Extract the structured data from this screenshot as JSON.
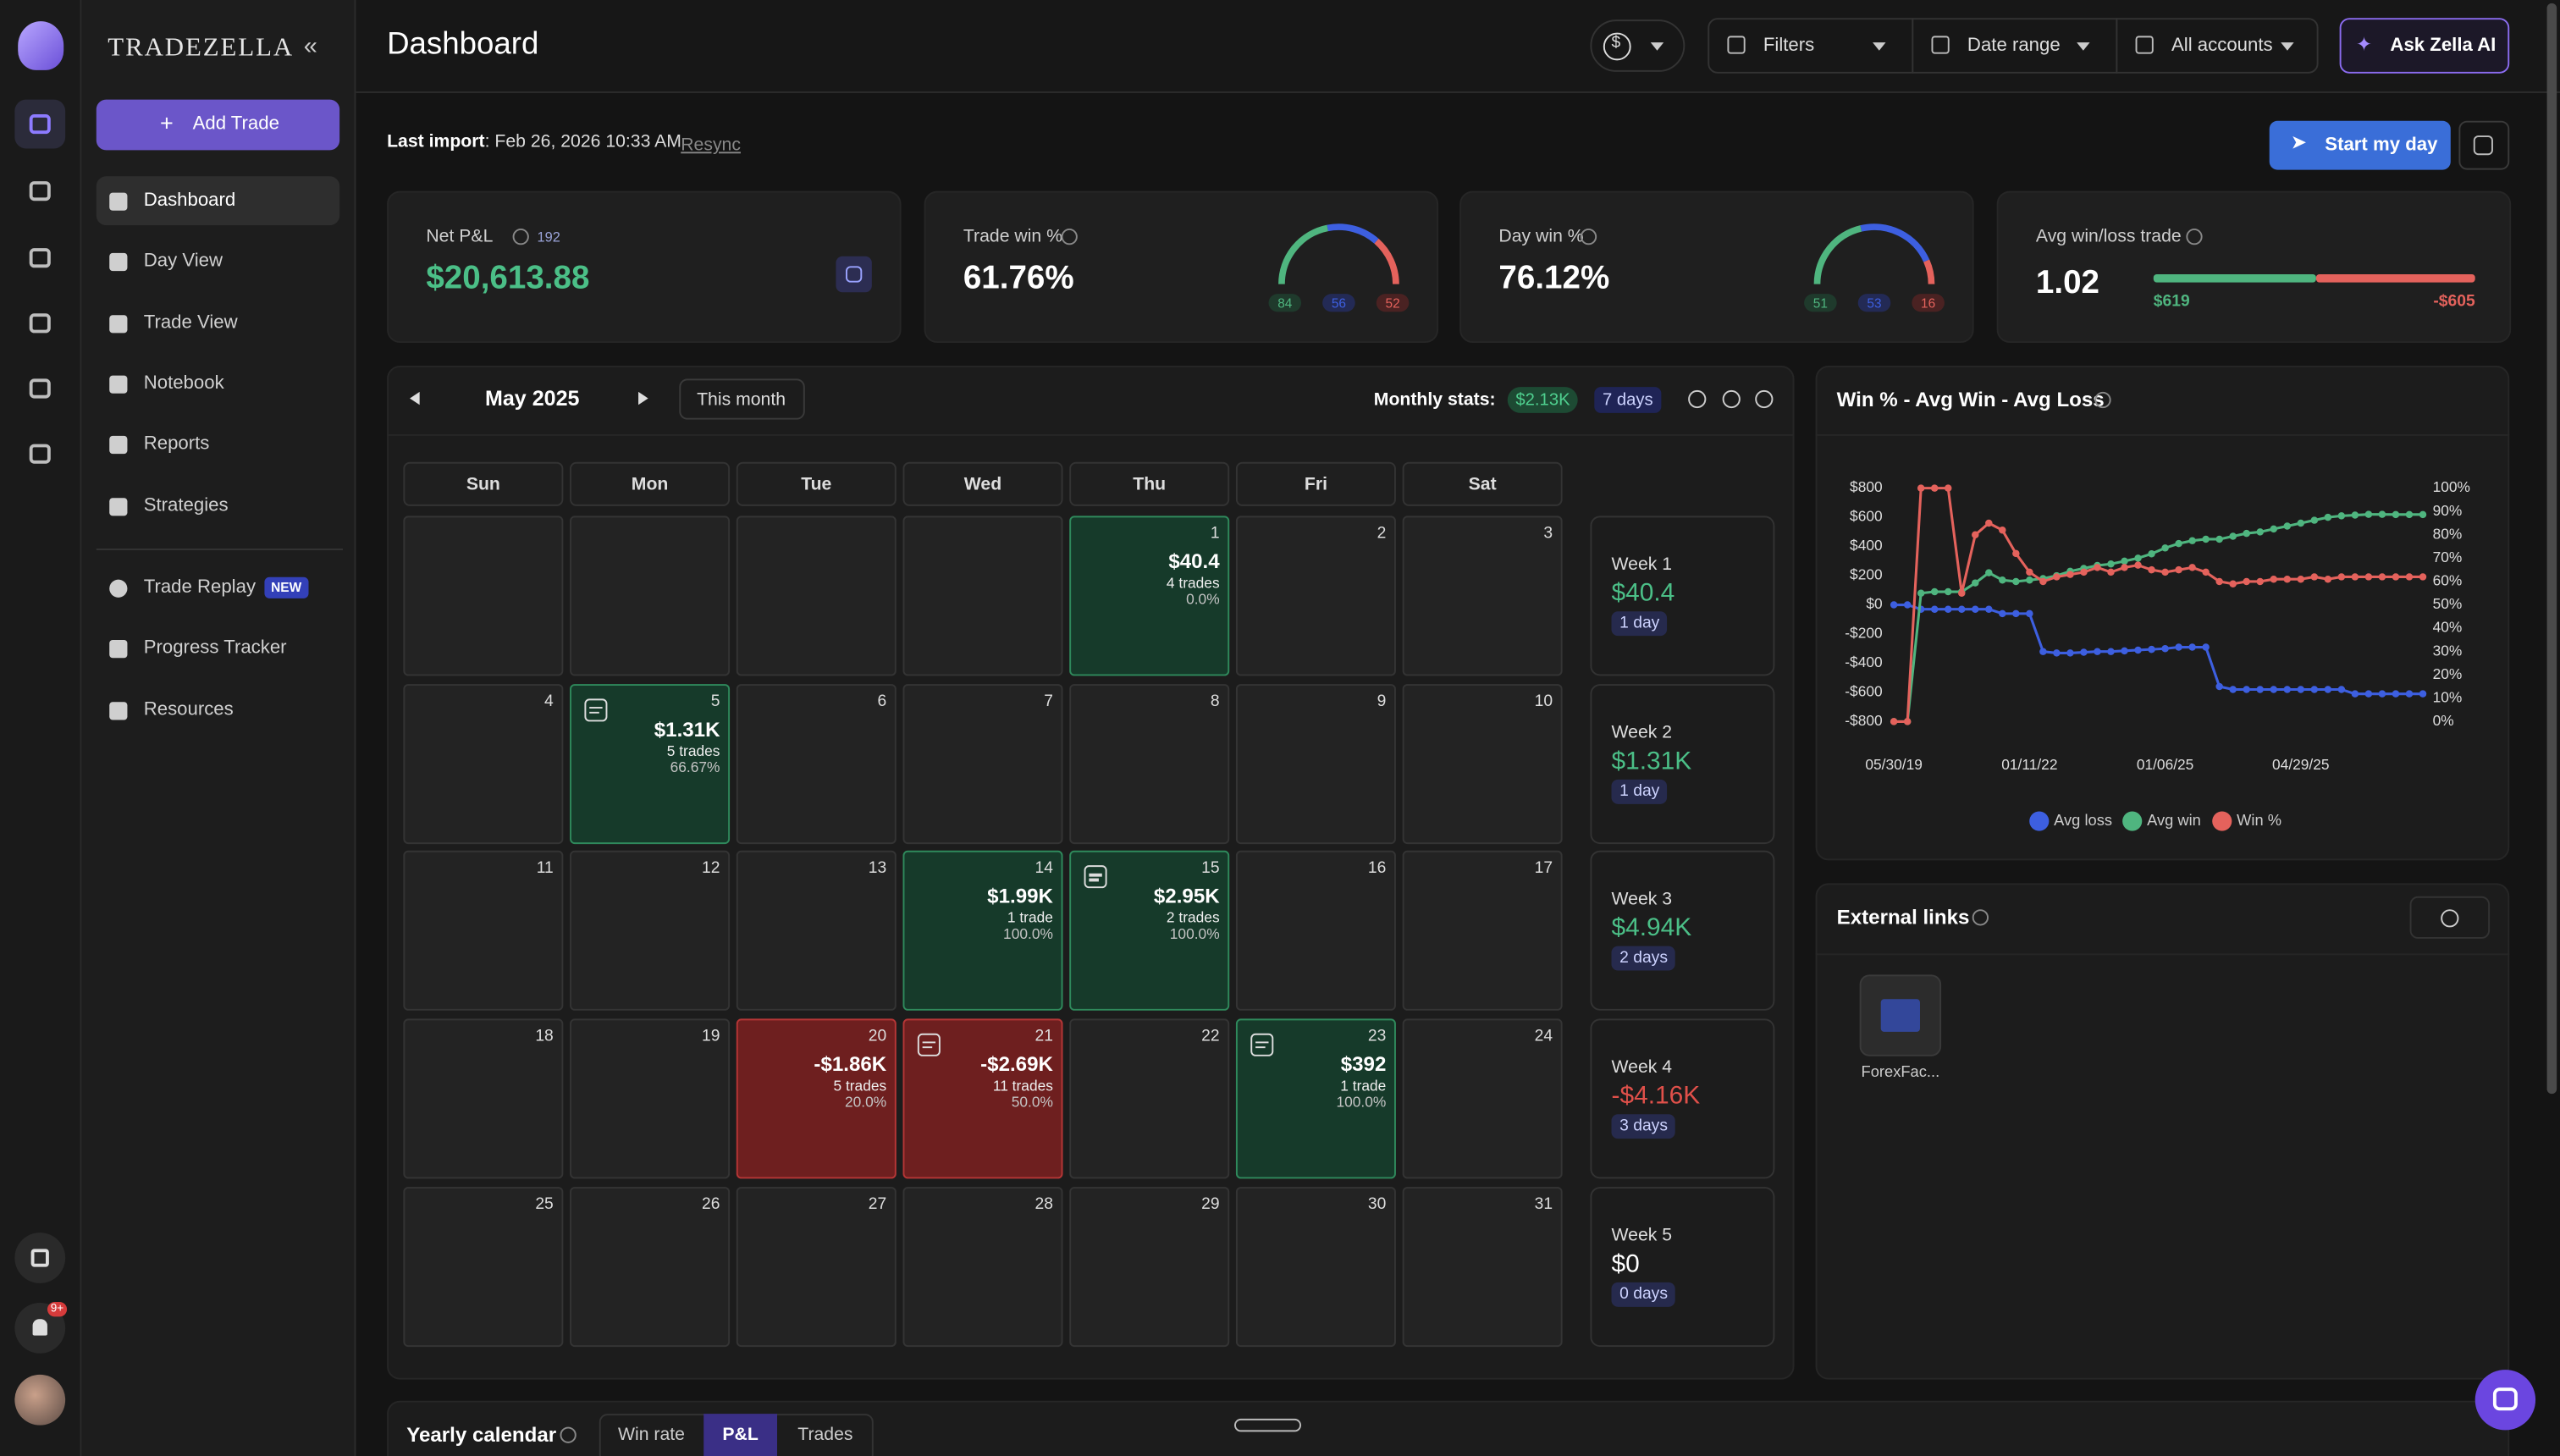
{
  "sidebar": {
    "brand": "TRADEZELLA",
    "add_trade": "Add Trade",
    "nav": [
      {
        "label": "Dashboard",
        "active": true
      },
      {
        "label": "Day View",
        "active": false
      },
      {
        "label": "Trade View",
        "active": false
      },
      {
        "label": "Notebook",
        "active": false
      },
      {
        "label": "Reports",
        "active": false
      },
      {
        "label": "Strategies",
        "active": false
      }
    ],
    "nav2": [
      {
        "label": "Trade Replay",
        "badge": "NEW"
      },
      {
        "label": "Progress Tracker"
      },
      {
        "label": "Resources"
      }
    ],
    "notifications": "9+"
  },
  "header": {
    "title": "Dashboard",
    "filters": "Filters",
    "date_range": "Date range",
    "accounts": "All accounts",
    "ask": "Ask Zella AI"
  },
  "import": {
    "label": "Last import",
    "value": ": Feb 26, 2026 10:33 AM",
    "resync": "Resync",
    "start": "Start my day"
  },
  "stats": [
    {
      "label": "Net P&L",
      "count": "192",
      "value": "$20,613.88"
    },
    {
      "label": "Trade win %",
      "value": "61.76%",
      "gauge": [
        84,
        56,
        52
      ]
    },
    {
      "label": "Day win %",
      "value": "76.12%",
      "gauge": [
        51,
        53,
        16
      ]
    },
    {
      "label": "Avg win/loss trade",
      "value": "1.02",
      "bar": {
        "values": [
          619,
          -605
        ],
        "value_labels": [
          "$619",
          "-$605"
        ]
      }
    }
  ],
  "calendar": {
    "month": "May 2025",
    "this_month": "This month",
    "monthly_stats_label": "Monthly stats:",
    "monthly_pnl": "$2.13K",
    "monthly_days": "7 days",
    "weekdays": [
      "Sun",
      "Mon",
      "Tue",
      "Wed",
      "Thu",
      "Fri",
      "Sat"
    ],
    "cells": [
      null,
      null,
      null,
      null,
      {
        "day": "1",
        "pnl": "$40.4",
        "trades": "4 trades",
        "pct": "0.0%",
        "tone": "win"
      },
      {
        "day": "2"
      },
      {
        "day": "3"
      },
      {
        "day": "4"
      },
      {
        "day": "5",
        "pnl": "$1.31K",
        "trades": "5 trades",
        "pct": "66.67%",
        "tone": "win",
        "note": true
      },
      {
        "day": "6"
      },
      {
        "day": "7"
      },
      {
        "day": "8"
      },
      {
        "day": "9"
      },
      {
        "day": "10"
      },
      {
        "day": "11"
      },
      {
        "day": "12"
      },
      {
        "day": "13"
      },
      {
        "day": "14",
        "pnl": "$1.99K",
        "trades": "1 trade",
        "pct": "100.0%",
        "tone": "win"
      },
      {
        "day": "15",
        "pnl": "$2.95K",
        "trades": "2 trades",
        "pct": "100.0%",
        "tone": "win",
        "note": true
      },
      {
        "day": "16"
      },
      {
        "day": "17"
      },
      {
        "day": "18"
      },
      {
        "day": "19"
      },
      {
        "day": "20",
        "pnl": "-$1.86K",
        "trades": "5 trades",
        "pct": "20.0%",
        "tone": "loss"
      },
      {
        "day": "21",
        "pnl": "-$2.69K",
        "trades": "11 trades",
        "pct": "50.0%",
        "tone": "loss",
        "note": true
      },
      {
        "day": "22"
      },
      {
        "day": "23",
        "pnl": "$392",
        "trades": "1 trade",
        "pct": "100.0%",
        "tone": "win",
        "note": true
      },
      {
        "day": "24"
      },
      {
        "day": "25"
      },
      {
        "day": "26"
      },
      {
        "day": "27"
      },
      {
        "day": "28"
      },
      {
        "day": "29"
      },
      {
        "day": "30"
      },
      {
        "day": "31"
      }
    ],
    "weeks": [
      {
        "label": "Week 1",
        "pnl": "$40.4",
        "days": "1 day",
        "tone": "win"
      },
      {
        "label": "Week 2",
        "pnl": "$1.31K",
        "days": "1 day",
        "tone": "win"
      },
      {
        "label": "Week 3",
        "pnl": "$4.94K",
        "days": "2 days",
        "tone": "win"
      },
      {
        "label": "Week 4",
        "pnl": "-$4.16K",
        "days": "3 days",
        "tone": "loss"
      },
      {
        "label": "Week 5",
        "pnl": "$0",
        "days": "0 days",
        "tone": "neutral"
      }
    ]
  },
  "chart_data": {
    "type": "line",
    "title": "Win % - Avg Win - Avg Loss",
    "categories": [
      "05/30/19",
      null,
      null,
      null,
      null,
      null,
      null,
      null,
      null,
      null,
      "01/11/22",
      null,
      null,
      null,
      null,
      null,
      null,
      null,
      null,
      null,
      "01/06/25",
      null,
      null,
      null,
      null,
      null,
      null,
      null,
      null,
      null,
      "04/29/25",
      null,
      null,
      null,
      null,
      null,
      null,
      null,
      null,
      null
    ],
    "ylim": [
      -800,
      800
    ],
    "yticks": [
      {
        "value": -800,
        "label": "-$800"
      },
      {
        "value": -600,
        "label": "-$600"
      },
      {
        "value": -400,
        "label": "-$400"
      },
      {
        "value": -200,
        "label": "-$200"
      },
      {
        "value": 0,
        "label": "$0"
      },
      {
        "value": 200,
        "label": "$200"
      },
      {
        "value": 400,
        "label": "$400"
      },
      {
        "value": 600,
        "label": "$600"
      },
      {
        "value": 800,
        "label": "$800"
      }
    ],
    "y2lim": [
      0,
      100
    ],
    "y2ticks": [
      {
        "value": 0,
        "label": "0%"
      },
      {
        "value": 10,
        "label": "10%"
      },
      {
        "value": 20,
        "label": "20%"
      },
      {
        "value": 30,
        "label": "30%"
      },
      {
        "value": 40,
        "label": "40%"
      },
      {
        "value": 50,
        "label": "50%"
      },
      {
        "value": 60,
        "label": "60%"
      },
      {
        "value": 70,
        "label": "70%"
      },
      {
        "value": 80,
        "label": "80%"
      },
      {
        "value": 90,
        "label": "90%"
      },
      {
        "value": 100,
        "label": "100%"
      }
    ],
    "series": [
      {
        "name": "Avg loss",
        "color": "#3d5fe0",
        "values": [
          0,
          0,
          -30,
          -30,
          -30,
          -30,
          -30,
          -30,
          -60,
          -60,
          -60,
          -320,
          -330,
          -330,
          -325,
          -320,
          -320,
          -315,
          -310,
          -305,
          -300,
          -290,
          -290,
          -290,
          -560,
          -580,
          -580,
          -580,
          -580,
          -580,
          -580,
          -580,
          -580,
          -580,
          -610,
          -610,
          -610,
          -610,
          -610,
          -610
        ]
      },
      {
        "name": "Avg win",
        "color": "#4fb57f",
        "values": [
          -800,
          -800,
          80,
          90,
          90,
          90,
          150,
          220,
          170,
          160,
          170,
          180,
          200,
          230,
          250,
          270,
          280,
          300,
          320,
          350,
          390,
          420,
          440,
          450,
          450,
          470,
          490,
          500,
          520,
          540,
          560,
          580,
          600,
          610,
          615,
          620,
          620,
          619,
          619,
          619
        ]
      },
      {
        "name": "Win %",
        "color": "#e4625c",
        "axis": "y2",
        "values": [
          0,
          0,
          100,
          100,
          100,
          55,
          80,
          85,
          82,
          72,
          64,
          60,
          62,
          63,
          64,
          66,
          64,
          66,
          67,
          65,
          64,
          65,
          66,
          64,
          60,
          59,
          60,
          60,
          61,
          61,
          61,
          62,
          61,
          62,
          62,
          62,
          62,
          62,
          62,
          62
        ]
      }
    ]
  },
  "external": {
    "title": "External links",
    "items": [
      "ForexFac..."
    ]
  },
  "yearly": {
    "title": "Yearly calendar",
    "tabs": [
      {
        "label": "Win rate",
        "active": false
      },
      {
        "label": "P&L",
        "active": true
      },
      {
        "label": "Trades",
        "active": false
      }
    ]
  }
}
